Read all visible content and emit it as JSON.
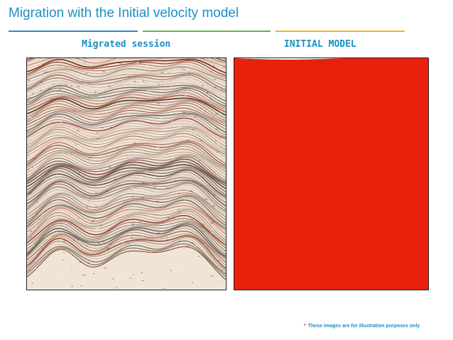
{
  "slide": {
    "title": "Migration with the Initial velocity model"
  },
  "captions": {
    "left": "Migrated session",
    "right": "INITIAL MODEL"
  },
  "footnote": {
    "mark": "*",
    "text": "These images are for illustration purposes only"
  },
  "colors": {
    "title": "#1d8fc4",
    "rule_blue": "#2a8cc8",
    "rule_green": "#5bb94a",
    "rule_orange": "#f5b324",
    "model_layers": [
      "#e8200c",
      "#ee4a0a",
      "#f26d0a",
      "#f68f0c",
      "#f7ad14",
      "#f0c81a",
      "#d8d81e",
      "#b5d424",
      "#8fca22",
      "#6cbf1e",
      "#4db31c",
      "#3ba91e",
      "#36a126",
      "#3b9e32",
      "#45a243",
      "#52a854",
      "#5eb068",
      "#6bb77b",
      "#78bd8e",
      "#86c4a0",
      "#94cbb2",
      "#a2d3c2",
      "#b0dbd2"
    ]
  }
}
